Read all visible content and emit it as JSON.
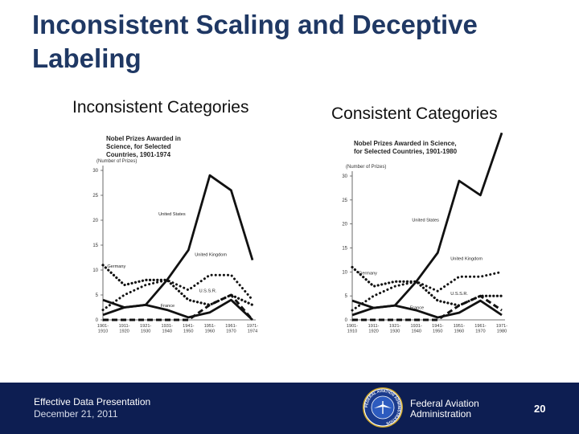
{
  "slide": {
    "title": "Inconsistent Scaling and Deceptive Labeling",
    "page_number": "20"
  },
  "footer": {
    "presentation": "Effective Data Presentation",
    "date": "December 21, 2011",
    "agency": "Federal Aviation Administration",
    "seal_text": "FEDERAL AVIATION ADMINISTRATION"
  },
  "colors": {
    "title": "#1f3864",
    "footer_bg": "#0d1e52"
  },
  "chart_data": [
    {
      "type": "line",
      "panel_title": "Inconsistent Categories",
      "title": "Nobel Prizes Awarded in Science, for Selected Countries, 1901-1974",
      "ylabel": "(Number of Prizes)",
      "ylim": [
        0,
        30
      ],
      "yticks": [
        0,
        5,
        10,
        15,
        20,
        25,
        30
      ],
      "categories": [
        "1901-1910",
        "1911-1920",
        "1921-1930",
        "1931-1940",
        "1941-1950",
        "1951-1960",
        "1961-1970",
        "1971-1974"
      ],
      "series": [
        {
          "name": "United States",
          "values": [
            1,
            2.5,
            3,
            8,
            14,
            29,
            26,
            12
          ]
        },
        {
          "name": "United Kingdom",
          "values": [
            2,
            5,
            7,
            8,
            6,
            9,
            9,
            4
          ]
        },
        {
          "name": "Germany",
          "values": [
            11,
            7,
            8,
            8,
            4,
            3,
            5,
            3
          ]
        },
        {
          "name": "France",
          "values": [
            4,
            2.5,
            3,
            2,
            0.5,
            1.5,
            4,
            0
          ]
        },
        {
          "name": "U.S.S.R.",
          "values": [
            0,
            0,
            0,
            0,
            0,
            3,
            5,
            0
          ]
        }
      ]
    },
    {
      "type": "line",
      "panel_title": "Consistent Categories",
      "title": "Nobel Prizes Awarded in Science, for Selected Countries, 1901-1980",
      "ylabel": "(Number of Prizes)",
      "ylim": [
        0,
        30
      ],
      "yticks": [
        0,
        5,
        10,
        15,
        20,
        25,
        30
      ],
      "categories": [
        "1901-1910",
        "1911-1920",
        "1921-1930",
        "1931-1940",
        "1941-1950",
        "1951-1960",
        "1961-1970",
        "1971-1980"
      ],
      "series": [
        {
          "name": "United States",
          "values": [
            1,
            2.5,
            3,
            8,
            14,
            29,
            26,
            39
          ]
        },
        {
          "name": "United Kingdom",
          "values": [
            2,
            5,
            7,
            8,
            6,
            9,
            9,
            10
          ]
        },
        {
          "name": "Germany",
          "values": [
            11,
            7,
            8,
            8,
            4,
            3,
            5,
            5
          ]
        },
        {
          "name": "France",
          "values": [
            4,
            2.5,
            3,
            2,
            0.5,
            1.5,
            4,
            1
          ]
        },
        {
          "name": "U.S.S.R.",
          "values": [
            0,
            0,
            0,
            0,
            0,
            3,
            5,
            2
          ]
        }
      ]
    }
  ]
}
